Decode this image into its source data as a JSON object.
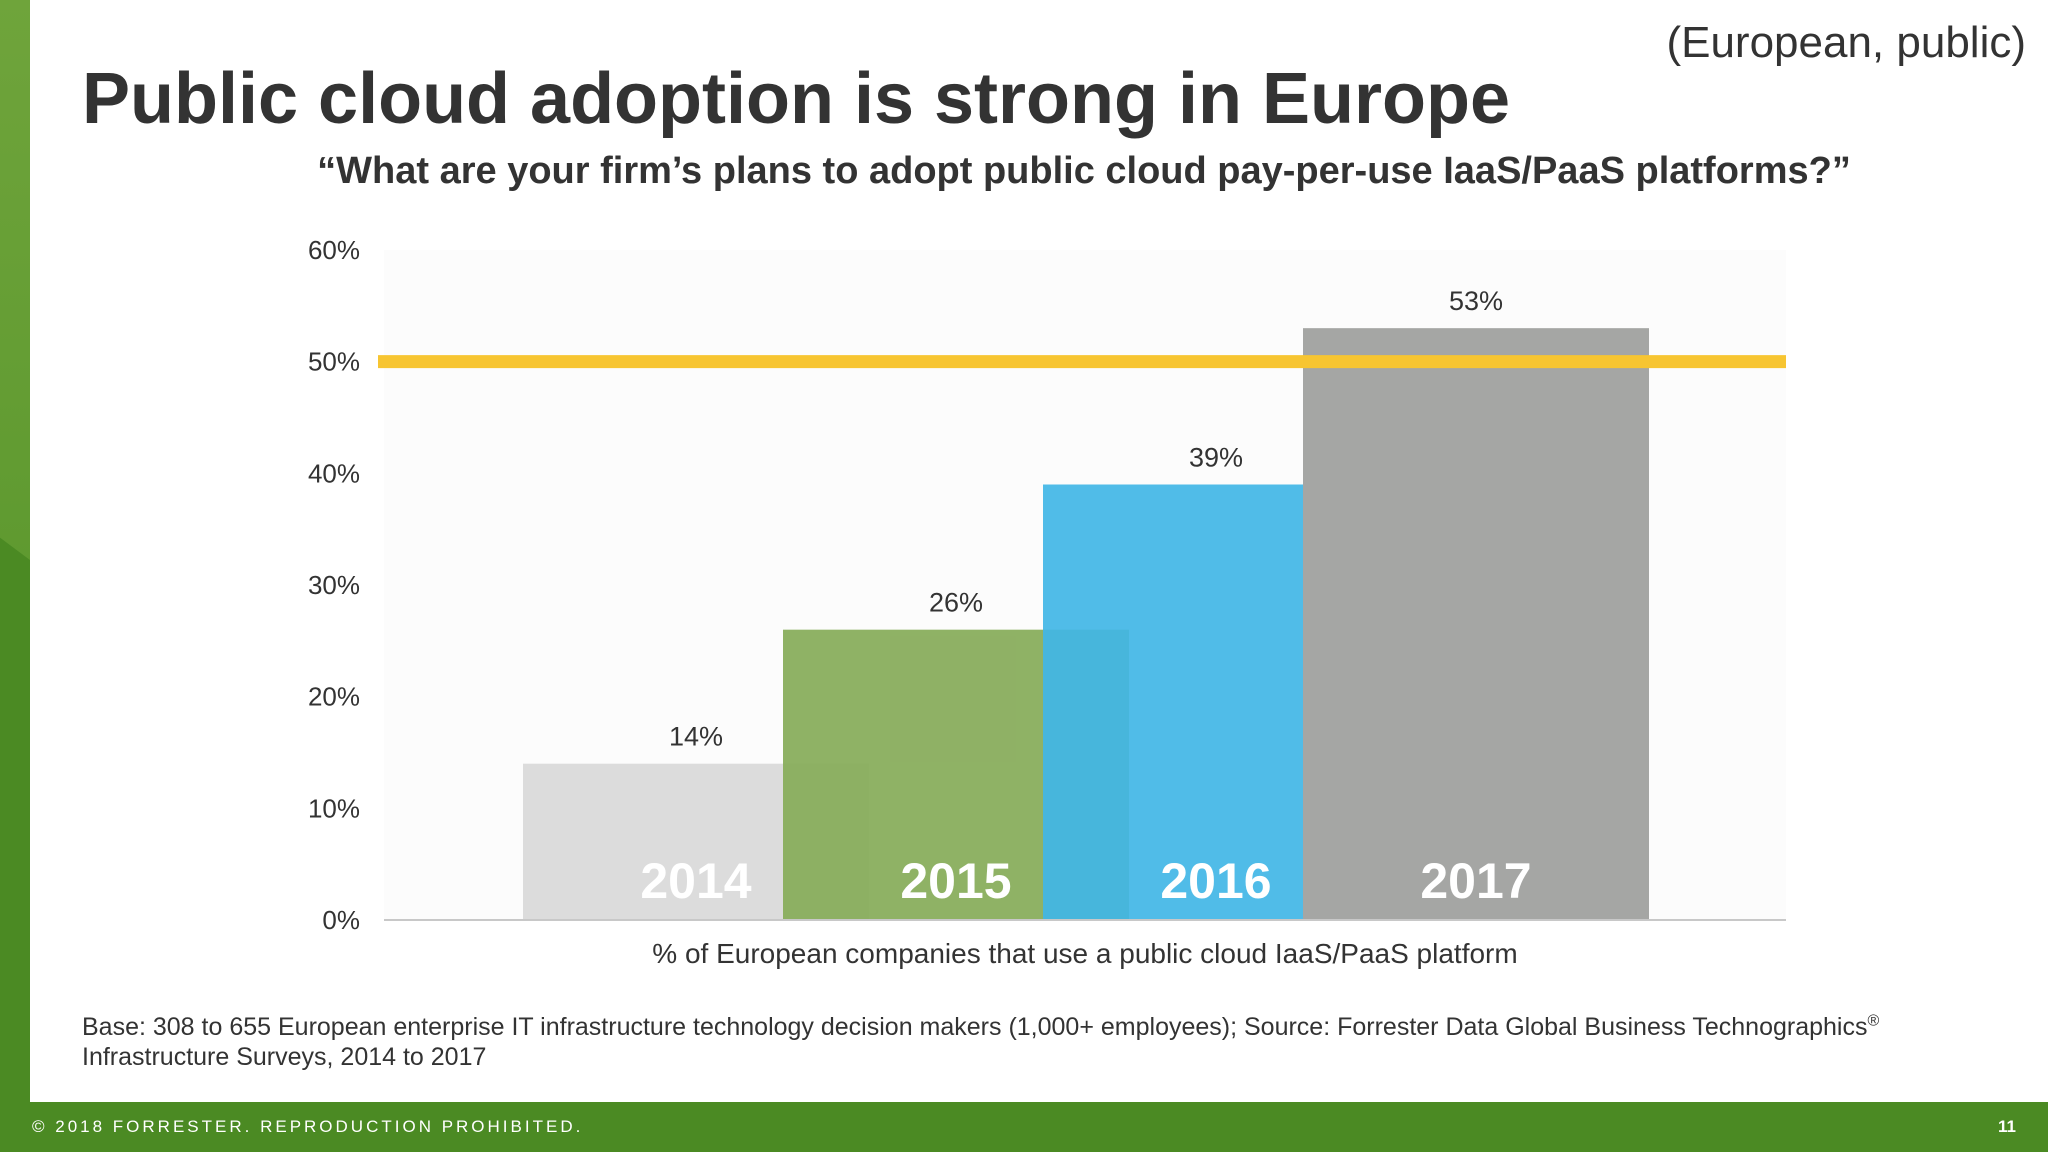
{
  "slide": {
    "tag": "(European, public)",
    "title": "Public cloud adoption is strong in Europe"
  },
  "chart_data": {
    "type": "bar",
    "title": "“What are your firm’s plans to adopt public cloud pay-per-use IaaS/PaaS platforms?”",
    "xlabel": "% of European companies that use a public cloud IaaS/PaaS platform",
    "ylabel": "",
    "categories": [
      "2014",
      "2015",
      "2016",
      "2017"
    ],
    "values": [
      14,
      26,
      39,
      53
    ],
    "data_labels": [
      "14%",
      "26%",
      "39%",
      "53%"
    ],
    "bar_colors": [
      "#d9d9d9",
      "#86ab58",
      "#41b6e6",
      "#a5a6a4"
    ],
    "ylim": [
      0,
      60
    ],
    "yticks": [
      0,
      10,
      20,
      30,
      40,
      50,
      60
    ],
    "ytick_labels": [
      "0%",
      "10%",
      "20%",
      "30%",
      "40%",
      "50%",
      "60%"
    ],
    "reference_line": {
      "value": 50,
      "color": "#f7c531"
    },
    "grid": false,
    "legend": "none"
  },
  "footnote": {
    "text": "Base: 308 to 655 European enterprise IT infrastructure technology decision makers (1,000+ employees); Source: Forrester Data Global Business Technographics",
    "mark": "®",
    "text2": "Infrastructure Surveys, 2014 to 2017"
  },
  "footer": {
    "copyright": "© 2018 FORRESTER. REPRODUCTION PROHIBITED.",
    "page": "11"
  },
  "colors": {
    "brand_green": "#4b8a23",
    "text": "#333333"
  }
}
